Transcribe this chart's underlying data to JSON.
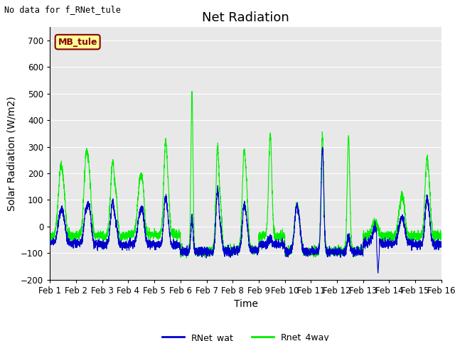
{
  "title": "Net Radiation",
  "top_left_text": "No data for f_RNet_tule",
  "xlabel": "Time",
  "ylabel": "Solar Radiation (W/m2)",
  "ylim": [
    -200,
    750
  ],
  "yticks": [
    -200,
    -100,
    0,
    100,
    200,
    300,
    400,
    500,
    600,
    700
  ],
  "xlim_days": [
    0,
    15
  ],
  "xtick_labels": [
    "Feb 1",
    "Feb 2",
    "Feb 3",
    "Feb 4",
    "Feb 5",
    "Feb 6",
    "Feb 7",
    "Feb 8",
    "Feb 9",
    "Feb 10",
    "Feb 11",
    "Feb 12",
    "Feb 13",
    "Feb 14",
    "Feb 15",
    "Feb 16"
  ],
  "line_blue_color": "#0000cc",
  "line_green_color": "#00ee00",
  "line_width": 0.8,
  "legend_entries": [
    "RNet_wat",
    "Rnet_4way"
  ],
  "legend_box_label": "MB_tule",
  "legend_box_bg": "#ffff99",
  "legend_box_border": "#880000",
  "plot_bg": "#e8e8e8",
  "grid_color": "#ffffff",
  "title_fontsize": 13,
  "axis_label_fontsize": 10,
  "tick_label_fontsize": 8.5
}
